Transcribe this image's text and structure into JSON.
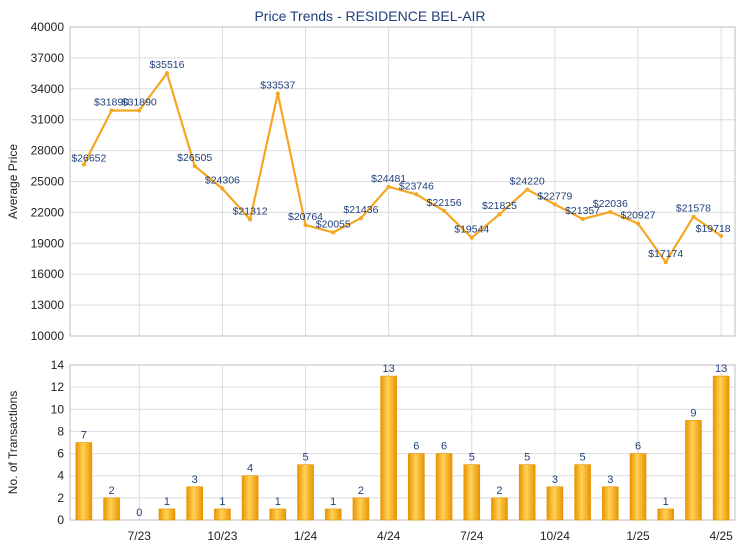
{
  "title": "Price Trends - RESIDENCE BEL-AIR",
  "colors": {
    "line": "#f5a623",
    "bar_light": "#ffd257",
    "bar_dark": "#e89400",
    "grid": "#dcdcdc",
    "title": "#1f3f7a",
    "axis_text": "#222222",
    "label_text": "#1f3f7a"
  },
  "chart_data": [
    {
      "type": "line",
      "ylabel": "Average Price",
      "ylim": [
        10000,
        40000
      ],
      "yticks": [
        "10000",
        "13000",
        "16000",
        "19000",
        "22000",
        "25000",
        "28000",
        "31000",
        "34000",
        "37000",
        "40000"
      ],
      "grid": true,
      "values": [
        26652,
        31890,
        31890,
        35516,
        26505,
        24306,
        21312,
        33537,
        20764,
        20055,
        21436,
        24481,
        23746,
        22156,
        19544,
        21825,
        24220,
        22779,
        21357,
        22036,
        20927,
        17174,
        21578,
        19718
      ],
      "labels": [
        "$26652",
        "$31890",
        "$31890",
        "$35516",
        "$26505",
        "$24306",
        "$21312",
        "$33537",
        "$20764",
        "$20055",
        "$21436",
        "$24481",
        "$23746",
        "$22156",
        "$19544",
        "$21825",
        "$24220",
        "$22779",
        "$21357",
        "$22036",
        "$20927",
        "$17174",
        "$21578",
        "$19718"
      ]
    },
    {
      "type": "bar",
      "ylabel": "No. of Transactions",
      "ylim": [
        0,
        14
      ],
      "yticks": [
        "0",
        "2",
        "4",
        "6",
        "8",
        "10",
        "12",
        "14"
      ],
      "grid": true,
      "values": [
        7,
        2,
        0,
        1,
        3,
        1,
        4,
        1,
        5,
        1,
        2,
        13,
        6,
        6,
        5,
        2,
        5,
        3,
        5,
        3,
        6,
        1,
        9,
        13
      ],
      "x_tick_labels": [
        {
          "index": 2,
          "label": "7/23"
        },
        {
          "index": 5,
          "label": "10/23"
        },
        {
          "index": 8,
          "label": "1/24"
        },
        {
          "index": 11,
          "label": "4/24"
        },
        {
          "index": 14,
          "label": "7/24"
        },
        {
          "index": 17,
          "label": "10/24"
        },
        {
          "index": 20,
          "label": "1/25"
        },
        {
          "index": 23,
          "label": "4/25"
        }
      ]
    }
  ]
}
